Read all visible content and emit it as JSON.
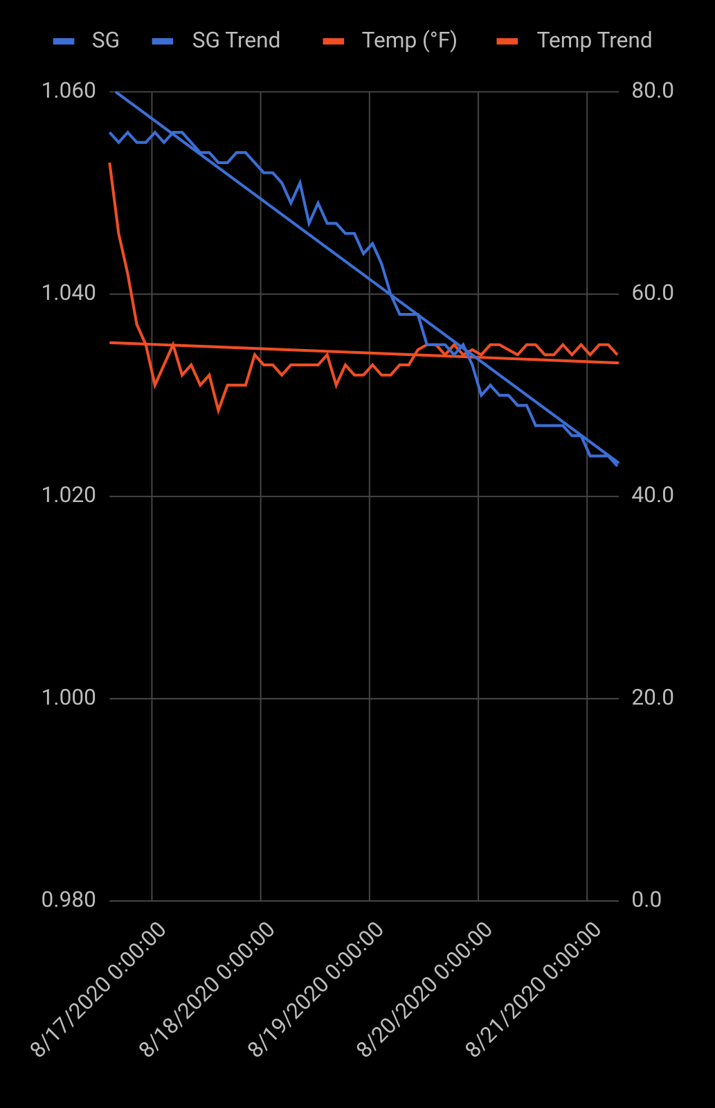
{
  "chart_data": {
    "type": "line",
    "xlim": [
      "8/16/2020 14:40:00",
      "8/21/2020 7:00:00"
    ],
    "xticks": [
      "8/17/2020 0:00:00",
      "8/18/2020 0:00:00",
      "8/19/2020 0:00:00",
      "8/20/2020 0:00:00",
      "8/21/2020 0:00:00"
    ],
    "ylim": [
      0.98,
      1.06
    ],
    "yticks": [
      {
        "value": 0.98,
        "label": "0.980"
      },
      {
        "value": 1.0,
        "label": "1.000"
      },
      {
        "value": 1.02,
        "label": "1.020"
      },
      {
        "value": 1.04,
        "label": "1.040"
      },
      {
        "value": 1.06,
        "label": "1.060"
      }
    ],
    "y2lim": [
      0,
      80
    ],
    "y2ticks": [
      {
        "value": 0,
        "label": "0.0"
      },
      {
        "value": 20,
        "label": "20.0"
      },
      {
        "value": 40,
        "label": "40.0"
      },
      {
        "value": 60,
        "label": "60.0"
      },
      {
        "value": 80,
        "label": "80.0"
      }
    ],
    "grid": true,
    "legend": "top",
    "series": [
      {
        "name": "SG",
        "color": "#3b6fd6",
        "x_start": "8/16/2020 14:40:00",
        "x_step_hours": 2,
        "values": [
          1.056,
          1.055,
          1.056,
          1.055,
          1.055,
          1.056,
          1.055,
          1.056,
          1.056,
          1.055,
          1.054,
          1.054,
          1.053,
          1.053,
          1.054,
          1.054,
          1.053,
          1.052,
          1.052,
          1.051,
          1.049,
          1.051,
          1.047,
          1.049,
          1.047,
          1.047,
          1.046,
          1.046,
          1.044,
          1.045,
          1.043,
          1.04,
          1.038,
          1.038,
          1.038,
          1.035,
          1.035,
          1.035,
          1.034,
          1.035,
          1.033,
          1.03,
          1.031,
          1.03,
          1.03,
          1.029,
          1.029,
          1.027,
          1.027,
          1.027,
          1.027,
          1.026,
          1.026,
          1.024,
          1.024,
          1.024,
          1.023
        ]
      },
      {
        "name": "SG Trend",
        "color": "#3b6fd6",
        "x": [
          "8/16/2020 16:00:00",
          "8/21/2020 7:00:00"
        ],
        "values": [
          1.06,
          1.0233
        ]
      },
      {
        "name": "Temp (°F)",
        "color": "#f04e23",
        "axis": "y2",
        "x_start": "8/16/2020 14:40:00",
        "x_step_hours": 2,
        "values": [
          73,
          66,
          62,
          57,
          55,
          51,
          53,
          55,
          52,
          53,
          51,
          52,
          48.5,
          51,
          51,
          51,
          54,
          53,
          53,
          52,
          53,
          53,
          53,
          53,
          54,
          51,
          53,
          52,
          52,
          53,
          52,
          52,
          53,
          53,
          54.5,
          55,
          55,
          54,
          55,
          54,
          54.5,
          54,
          55,
          55,
          54.5,
          54,
          55,
          55,
          54,
          54,
          55,
          54,
          55,
          54,
          55,
          55,
          54
        ]
      },
      {
        "name": "Temp Trend",
        "color": "#f04e23",
        "axis": "y2",
        "x": [
          "8/16/2020 14:40:00",
          "8/21/2020 7:00:00"
        ],
        "values": [
          55.2,
          53.2
        ]
      }
    ]
  }
}
